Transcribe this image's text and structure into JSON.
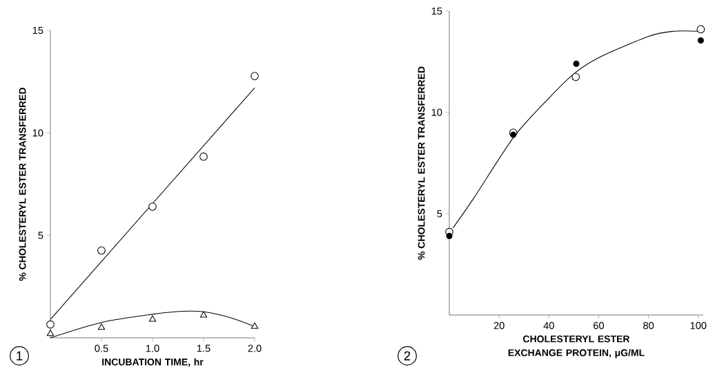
{
  "chart_data": [
    {
      "type": "scatter",
      "xlabel": "INCUBATION TIME, hr",
      "ylabel": "% CHOLESTERYL ESTER TRANSFERRED",
      "annotations": [
        "1"
      ],
      "xlim": [
        0,
        2.0
      ],
      "ylim": [
        0,
        15
      ],
      "xticks": [
        {
          "value": 0.5,
          "label": "0.5"
        },
        {
          "value": 1.0,
          "label": "1.0"
        },
        {
          "value": 1.5,
          "label": "1.5"
        },
        {
          "value": 2.0,
          "label": "2.0"
        }
      ],
      "yticks": [
        5,
        10,
        15
      ],
      "series": [
        {
          "marker": "circle",
          "color": "#ffffff",
          "x": [
            0,
            0.5,
            1.0,
            1.5,
            2.0
          ],
          "values": [
            0.65,
            4.26,
            6.4,
            8.84,
            12.77
          ]
        },
        {
          "type": "line",
          "color": "#000000",
          "x": [
            0,
            2.0
          ],
          "values": [
            0.9,
            12.2
          ]
        },
        {
          "marker": "triangle",
          "color": "#ffffff",
          "x": [
            0,
            0.5,
            1.0,
            1.5,
            2.0
          ],
          "values": [
            0.2,
            0.5,
            0.9,
            1.1,
            0.55
          ]
        },
        {
          "type": "line",
          "color": "#000000",
          "x": [
            0,
            0.5,
            1.0,
            1.3,
            1.5,
            1.75,
            2.0
          ],
          "values": [
            0,
            0.75,
            1.15,
            1.3,
            1.27,
            1.0,
            0.55
          ]
        }
      ]
    },
    {
      "type": "scatter",
      "xlabel": "CHOLESTERYL ESTER EXCHANGE PROTEIN, μG/ML",
      "ylabel": "% CHOLESTERYL ESTER TRANSFERRED",
      "annotations": [
        "2"
      ],
      "xlim": [
        0,
        102
      ],
      "ylim": [
        0,
        15
      ],
      "xticks": [
        20,
        40,
        60,
        80,
        100
      ],
      "yticks": [
        5,
        10,
        15
      ],
      "series": [
        {
          "marker": "circle",
          "color": "#ffffff",
          "x": [
            0,
            25.7,
            50.8,
            101
          ],
          "values": [
            4.1,
            9.0,
            11.75,
            14.1
          ]
        },
        {
          "marker": "circle",
          "color": "#000000",
          "x": [
            0,
            25.7,
            51,
            101
          ],
          "values": [
            3.9,
            8.9,
            12.4,
            13.55
          ]
        },
        {
          "type": "line",
          "color": "#000000",
          "x": [
            1.5,
            10,
            26,
            40,
            50,
            60,
            80,
            90,
            100
          ],
          "values": [
            4.3,
            5.8,
            8.8,
            10.7,
            11.9,
            12.7,
            13.75,
            14.0,
            14.0
          ]
        }
      ]
    }
  ]
}
